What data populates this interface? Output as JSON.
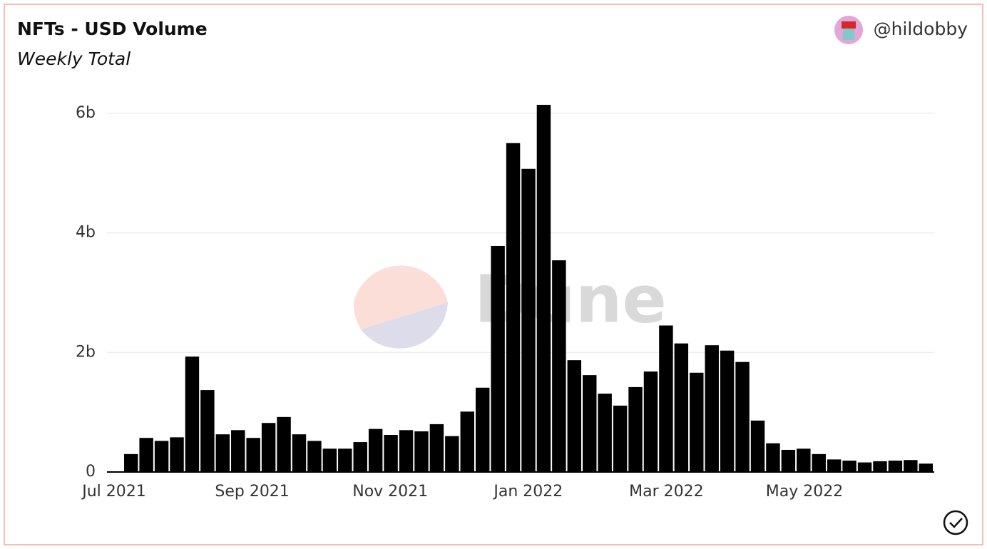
{
  "chart_data": {
    "type": "bar",
    "title": "NFTs - USD Volume",
    "subtitle": "Weekly Total",
    "author": "@hildobby",
    "watermark": "Dune",
    "categories": [
      null,
      null,
      null,
      null,
      null,
      null,
      null,
      null,
      null,
      null,
      null,
      null,
      null,
      null,
      null,
      null,
      null,
      null,
      null,
      null,
      null,
      null,
      null,
      null,
      null,
      null,
      null,
      null,
      null,
      null,
      null,
      null,
      null,
      null,
      null,
      null,
      null,
      null,
      null,
      null,
      null,
      null,
      null,
      null,
      null,
      null,
      null,
      null,
      null,
      null,
      null,
      null,
      null
    ],
    "values": [
      0.3,
      0.57,
      0.52,
      0.58,
      1.93,
      1.37,
      0.63,
      0.7,
      0.57,
      0.82,
      0.92,
      0.63,
      0.52,
      0.39,
      0.39,
      0.5,
      0.72,
      0.62,
      0.7,
      0.68,
      0.8,
      0.6,
      1.01,
      1.41,
      3.78,
      5.5,
      5.07,
      6.14,
      3.54,
      1.87,
      1.62,
      1.31,
      1.11,
      1.42,
      1.68,
      2.45,
      2.15,
      1.66,
      2.12,
      2.03,
      1.84,
      0.86,
      0.48,
      0.37,
      0.39,
      0.3,
      0.21,
      0.19,
      0.16,
      0.18,
      0.19,
      0.2,
      0.14
    ],
    "color": "#000000",
    "xtick_labels": [
      "Jul 2021",
      "Sep 2021",
      "Nov 2021",
      "Jan 2022",
      "Mar 2022",
      "May 2022"
    ],
    "ylim": [
      0,
      6.2
    ],
    "yticks": [
      0,
      {
        "value": 2,
        "label": "2b"
      },
      {
        "value": 4,
        "label": "4b"
      },
      {
        "value": 6,
        "label": "6b"
      }
    ],
    "grid": true
  }
}
